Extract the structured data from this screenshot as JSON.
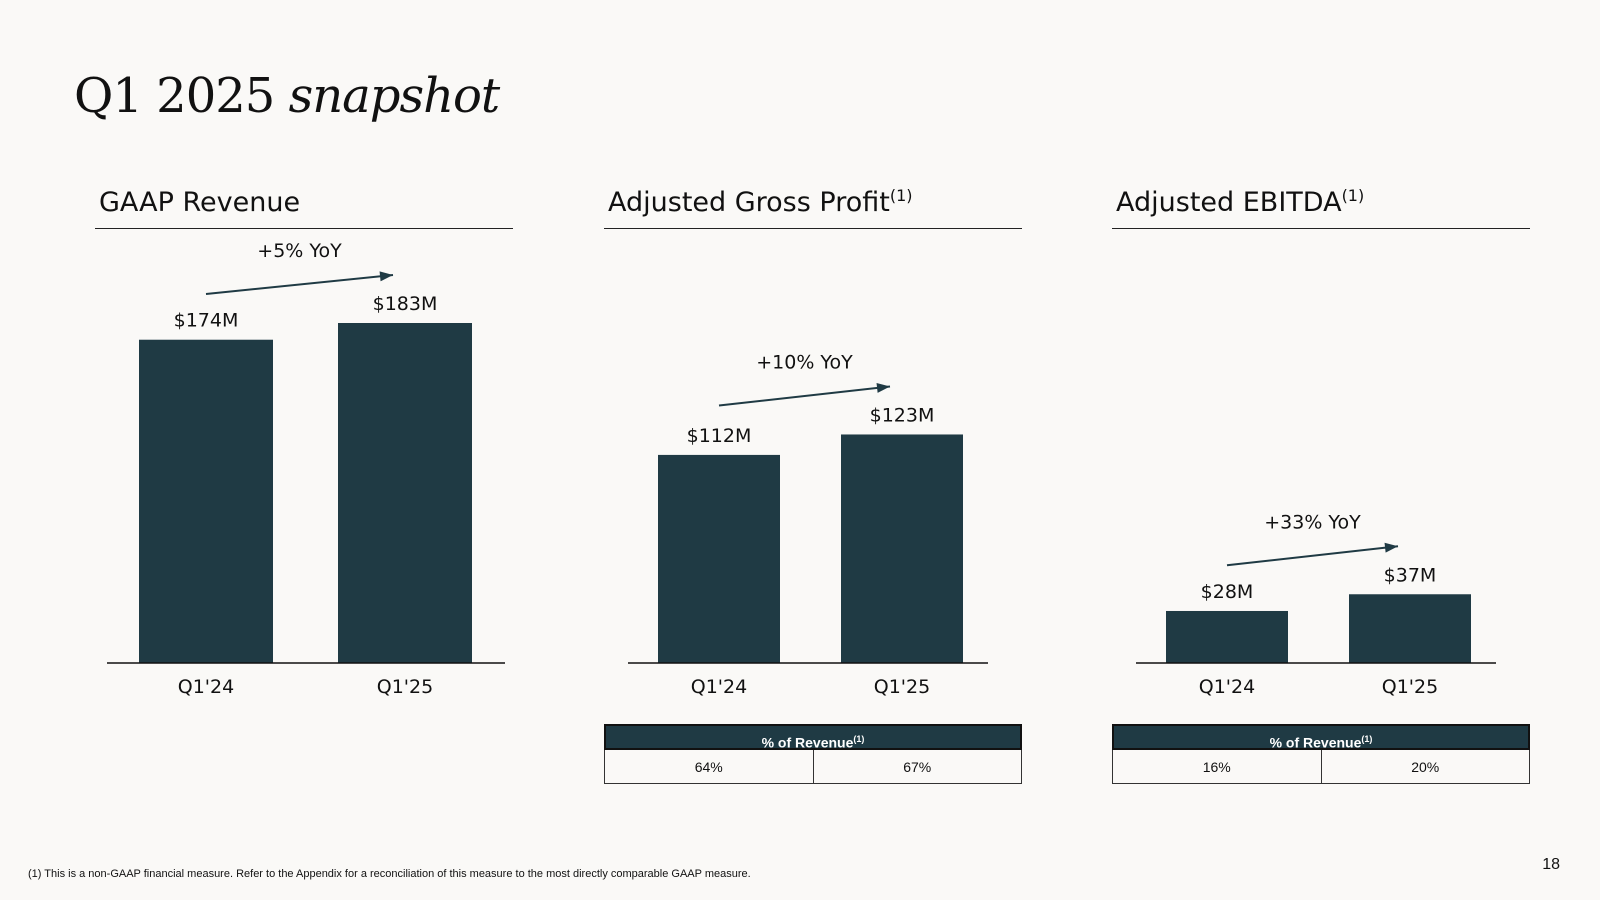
{
  "title": {
    "main": "Q1 2025 ",
    "italic": "snapshot"
  },
  "panels": [
    {
      "heading": "GAAP Revenue",
      "sup": ""
    },
    {
      "heading": "Adjusted Gross Profit",
      "sup": "(1)"
    },
    {
      "heading": "Adjusted EBITDA",
      "sup": "(1)"
    }
  ],
  "chart_data": [
    {
      "type": "bar",
      "title": "GAAP Revenue",
      "categories": [
        "Q1'24",
        "Q1'25"
      ],
      "values": [
        174,
        183
      ],
      "value_labels": [
        "$174M",
        "$183M"
      ],
      "annotation": "+5% YoY",
      "ylim": [
        0,
        183
      ]
    },
    {
      "type": "bar",
      "title": "Adjusted Gross Profit(1)",
      "categories": [
        "Q1'24",
        "Q1'25"
      ],
      "values": [
        112,
        123
      ],
      "value_labels": [
        "$112M",
        "$123M"
      ],
      "annotation": "+10% YoY",
      "ylim": [
        0,
        183
      ]
    },
    {
      "type": "bar",
      "title": "Adjusted EBITDA(1)",
      "categories": [
        "Q1'24",
        "Q1'25"
      ],
      "values": [
        28,
        37
      ],
      "value_labels": [
        "$28M",
        "$37M"
      ],
      "annotation": "+33% YoY",
      "ylim": [
        0,
        183
      ]
    }
  ],
  "tables": [
    null,
    {
      "header": "% of Revenue",
      "sup": "(1)",
      "values": [
        "64%",
        "67%"
      ]
    },
    {
      "header": "% of Revenue",
      "sup": "(1)",
      "values": [
        "16%",
        "20%"
      ]
    }
  ],
  "colors": {
    "bar": "#1f3a44",
    "background": "#faf9f7"
  },
  "footnote": "(1) This is a non-GAAP financial measure.  Refer to the Appendix for a reconciliation of this measure to the most directly comparable GAAP measure.",
  "page_number": "18"
}
